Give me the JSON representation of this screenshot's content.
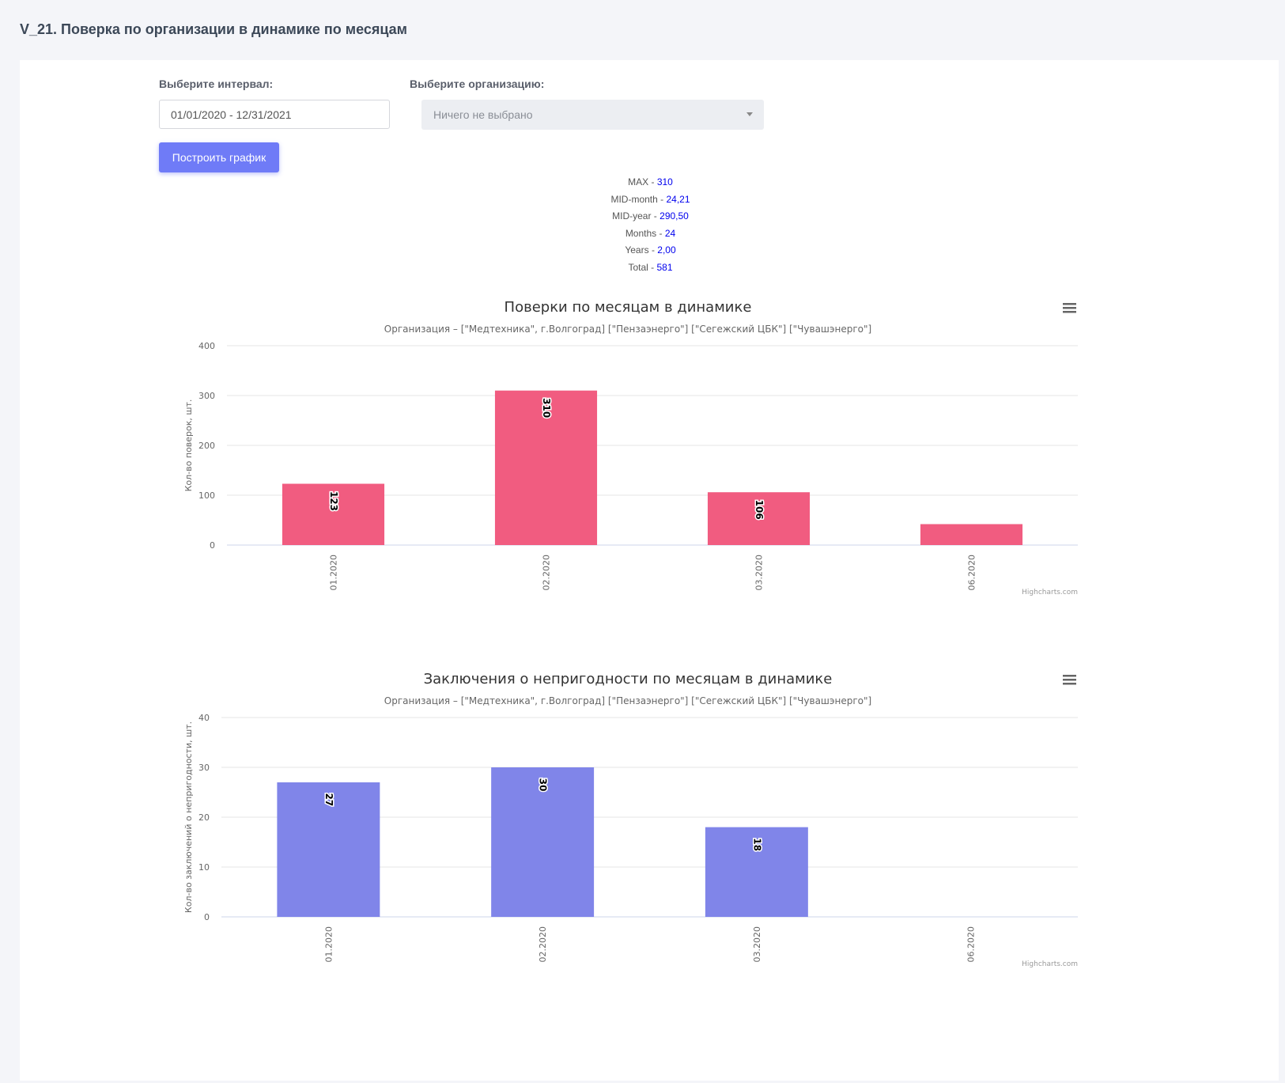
{
  "page": {
    "title": "V_21. Поверка по организации в динамике по месяцам"
  },
  "form": {
    "interval_label": "Выберите интервал:",
    "interval_value": "01/01/2020 - 12/31/2021",
    "org_label": "Выберите организацию:",
    "org_placeholder": "Ничего не выбрано",
    "build_button": "Построить график"
  },
  "stats": [
    {
      "label": "MAX - ",
      "value": "310"
    },
    {
      "label": "MID-month - ",
      "value": "24,21"
    },
    {
      "label": "MID-year - ",
      "value": "290,50"
    },
    {
      "label": "Months - ",
      "value": "24"
    },
    {
      "label": "Years - ",
      "value": "2,00"
    },
    {
      "label": "Total - ",
      "value": "581"
    }
  ],
  "credits": "Highcharts.com",
  "colors": {
    "bar1": "#f15c80",
    "bar2": "#8085e9",
    "button": "#6f7bf7",
    "stat_value": "#0000ee"
  },
  "chart_data": [
    {
      "type": "bar",
      "title": "Поверки по месяцам в динамике",
      "subtitle": "Организация – [\"Медтехника\", г.Волгоград] [\"Пензаэнерго\"] [\"Сегежский ЦБК\"] [\"Чувашэнерго\"]",
      "xlabel": "",
      "ylabel": "Кол-во поверок, шт.",
      "categories": [
        "01.2020",
        "02.2020",
        "03.2020",
        "06.2020"
      ],
      "values": [
        123,
        310,
        106,
        42
      ],
      "data_labels": [
        "123",
        "310",
        "106",
        ""
      ],
      "ylim": [
        0,
        400
      ],
      "yticks": [
        "0",
        "100",
        "200",
        "300",
        "400"
      ],
      "grid": true,
      "legend": "none",
      "color": "#f15c80"
    },
    {
      "type": "bar",
      "title": "Заключения о непригодности по месяцам в динамике",
      "subtitle": "Организация – [\"Медтехника\", г.Волгоград] [\"Пензаэнерго\"] [\"Сегежский ЦБК\"] [\"Чувашэнерго\"]",
      "xlabel": "",
      "ylabel": "Кол-во заключений о непригодности, шт.",
      "categories": [
        "01.2020",
        "02.2020",
        "03.2020",
        "06.2020"
      ],
      "values": [
        27,
        30,
        18,
        0
      ],
      "data_labels": [
        "27",
        "30",
        "18",
        ""
      ],
      "ylim": [
        0,
        40
      ],
      "yticks": [
        "0",
        "10",
        "20",
        "30",
        "40"
      ],
      "grid": true,
      "legend": "none",
      "color": "#8085e9"
    }
  ]
}
